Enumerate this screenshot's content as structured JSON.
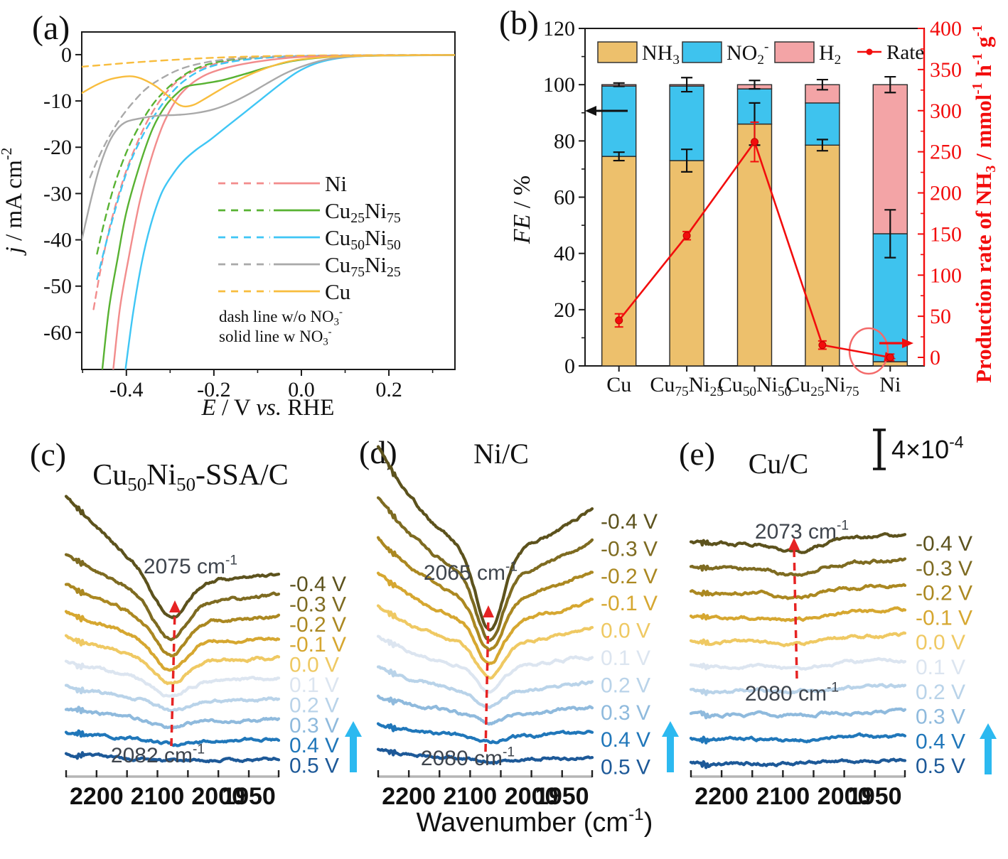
{
  "shared": {
    "wavenumber_label": "Wavenumber (cm^{-1})",
    "scalebar_label": "4×10^{-4}",
    "background": "#ffffff",
    "annotation_color": "#3f454d",
    "arrow_up_color": "#2cb9f0",
    "dashed_arrow_color": "#e62323"
  },
  "chart_data": [
    {
      "id": "a",
      "type": "line",
      "panel_label": "(a)",
      "xlabel": "@{E} / V @{vs.} RHE",
      "ylabel": "@{j} / mA cm^{-2}",
      "xlim": [
        -0.502,
        0.351
      ],
      "ylim": [
        -68,
        4.9
      ],
      "xticks": [
        -0.4,
        -0.2,
        0.0,
        0.2
      ],
      "xtick_labels": [
        "-0.4",
        "-0.2",
        "0.0",
        "0.2"
      ],
      "xminor": [
        -0.5,
        -0.3,
        -0.1,
        0.1,
        0.3
      ],
      "yticks": [
        0,
        -10,
        -20,
        -30,
        -40,
        -50,
        -60
      ],
      "legend_note_dash": "dash line w/o NO_{3}^{-}",
      "legend_note_solid": "solid line w NO_{3}^{-}",
      "legend": [
        {
          "label": "Ni",
          "color": "#f28c8c"
        },
        {
          "label": "Cu_{25}Ni_{75}",
          "color": "#58b232"
        },
        {
          "label": "Cu_{50}Ni_{50}",
          "color": "#3fc6f5"
        },
        {
          "label": "Cu_{75}Ni_{25}",
          "color": "#a9a9a9"
        },
        {
          "label": "Cu",
          "color": "#f8bd3e"
        }
      ],
      "series": [
        {
          "name": "Ni",
          "style": "dash",
          "color": "#f28c8c",
          "points": [
            [
              -0.475,
              -55
            ],
            [
              -0.46,
              -47
            ],
            [
              -0.44,
              -38
            ],
            [
              -0.42,
              -31
            ],
            [
              -0.4,
              -25
            ],
            [
              -0.375,
              -19
            ],
            [
              -0.35,
              -14
            ],
            [
              -0.32,
              -9.5
            ],
            [
              -0.29,
              -6.3
            ],
            [
              -0.26,
              -4.2
            ],
            [
              -0.22,
              -2.6
            ],
            [
              -0.17,
              -1.5
            ],
            [
              -0.1,
              -0.8
            ],
            [
              -0.02,
              -0.4
            ],
            [
              0.1,
              -0.2
            ],
            [
              0.35,
              -0.1
            ]
          ]
        },
        {
          "name": "Cu_{25}Ni_{75}",
          "style": "dash",
          "color": "#58b232",
          "points": [
            [
              -0.467,
              -43
            ],
            [
              -0.45,
              -36
            ],
            [
              -0.43,
              -29
            ],
            [
              -0.41,
              -23.5
            ],
            [
              -0.39,
              -19
            ],
            [
              -0.365,
              -14.5
            ],
            [
              -0.34,
              -10.8
            ],
            [
              -0.31,
              -7.6
            ],
            [
              -0.28,
              -5.2
            ],
            [
              -0.25,
              -3.4
            ],
            [
              -0.21,
              -2
            ],
            [
              -0.16,
              -1.1
            ],
            [
              -0.09,
              -0.5
            ],
            [
              0.0,
              -0.25
            ],
            [
              0.15,
              -0.12
            ],
            [
              0.35,
              -0.08
            ]
          ]
        },
        {
          "name": "Cu_{50}Ni_{50}",
          "style": "dash",
          "color": "#3fc6f5",
          "points": [
            [
              -0.467,
              -48.5
            ],
            [
              -0.45,
              -42
            ],
            [
              -0.43,
              -35
            ],
            [
              -0.41,
              -28.5
            ],
            [
              -0.39,
              -23
            ],
            [
              -0.36,
              -17
            ],
            [
              -0.33,
              -12.3
            ],
            [
              -0.3,
              -8.6
            ],
            [
              -0.27,
              -5.8
            ],
            [
              -0.23,
              -3.4
            ],
            [
              -0.18,
              -1.9
            ],
            [
              -0.11,
              -0.9
            ],
            [
              -0.03,
              -0.4
            ],
            [
              0.1,
              -0.18
            ],
            [
              0.35,
              -0.08
            ]
          ]
        },
        {
          "name": "Cu_{75}Ni_{25}",
          "style": "dash",
          "color": "#a9a9a9",
          "points": [
            [
              -0.483,
              -26.5
            ],
            [
              -0.46,
              -21.5
            ],
            [
              -0.435,
              -17
            ],
            [
              -0.41,
              -13.3
            ],
            [
              -0.38,
              -9.8
            ],
            [
              -0.35,
              -7
            ],
            [
              -0.31,
              -4.6
            ],
            [
              -0.27,
              -2.9
            ],
            [
              -0.22,
              -1.7
            ],
            [
              -0.16,
              -0.9
            ],
            [
              -0.08,
              -0.45
            ],
            [
              0.02,
              -0.25
            ],
            [
              0.15,
              -0.12
            ],
            [
              0.35,
              -0.08
            ]
          ]
        },
        {
          "name": "Cu",
          "style": "dash",
          "color": "#f8bd3e",
          "points": [
            [
              -0.502,
              -2.6
            ],
            [
              -0.45,
              -2.2
            ],
            [
              -0.4,
              -1.8
            ],
            [
              -0.34,
              -1.4
            ],
            [
              -0.28,
              -1.05
            ],
            [
              -0.22,
              -0.75
            ],
            [
              -0.15,
              -0.5
            ],
            [
              -0.07,
              -0.3
            ],
            [
              0.02,
              -0.18
            ],
            [
              0.15,
              -0.1
            ],
            [
              0.35,
              -0.06
            ]
          ]
        },
        {
          "name": "Ni",
          "style": "solid",
          "color": "#f28c8c",
          "points": [
            [
              -0.43,
              -68
            ],
            [
              -0.415,
              -55
            ],
            [
              -0.395,
              -44
            ],
            [
              -0.37,
              -32
            ],
            [
              -0.345,
              -23
            ],
            [
              -0.32,
              -16
            ],
            [
              -0.3,
              -12
            ],
            [
              -0.28,
              -9
            ],
            [
              -0.26,
              -7
            ],
            [
              -0.24,
              -5.5
            ],
            [
              -0.21,
              -4
            ],
            [
              -0.17,
              -2.8
            ],
            [
              -0.12,
              -1.8
            ],
            [
              -0.06,
              -1
            ],
            [
              0.0,
              -0.5
            ],
            [
              0.1,
              -0.25
            ],
            [
              0.22,
              -0.12
            ],
            [
              0.35,
              -0.08
            ]
          ]
        },
        {
          "name": "Cu_{25}Ni_{75}",
          "style": "solid",
          "color": "#58b232",
          "points": [
            [
              -0.455,
              -68
            ],
            [
              -0.44,
              -55
            ],
            [
              -0.42,
              -44
            ],
            [
              -0.4,
              -34
            ],
            [
              -0.37,
              -24
            ],
            [
              -0.34,
              -16
            ],
            [
              -0.31,
              -11
            ],
            [
              -0.28,
              -8
            ],
            [
              -0.26,
              -6.8
            ],
            [
              -0.22,
              -6.2
            ],
            [
              -0.18,
              -5.5
            ],
            [
              -0.13,
              -4.2
            ],
            [
              -0.08,
              -2.8
            ],
            [
              -0.02,
              -1.4
            ],
            [
              0.05,
              -0.6
            ],
            [
              0.15,
              -0.25
            ],
            [
              0.35,
              -0.1
            ]
          ]
        },
        {
          "name": "Cu_{50}Ni_{50}",
          "style": "solid",
          "color": "#3fc6f5",
          "points": [
            [
              -0.402,
              -68
            ],
            [
              -0.385,
              -56
            ],
            [
              -0.365,
              -45
            ],
            [
              -0.345,
              -37
            ],
            [
              -0.32,
              -30
            ],
            [
              -0.295,
              -26
            ],
            [
              -0.27,
              -23
            ],
            [
              -0.24,
              -20.5
            ],
            [
              -0.21,
              -18.5
            ],
            [
              -0.17,
              -15.5
            ],
            [
              -0.13,
              -12.5
            ],
            [
              -0.09,
              -9.5
            ],
            [
              -0.05,
              -6.5
            ],
            [
              -0.01,
              -3.8
            ],
            [
              0.03,
              -2
            ],
            [
              0.07,
              -1
            ],
            [
              0.12,
              -0.4
            ],
            [
              0.2,
              -0.2
            ],
            [
              0.35,
              -0.1
            ]
          ]
        },
        {
          "name": "Cu_{75}Ni_{25}",
          "style": "solid",
          "color": "#a9a9a9",
          "points": [
            [
              -0.502,
              -40
            ],
            [
              -0.48,
              -31
            ],
            [
              -0.46,
              -24
            ],
            [
              -0.44,
              -19
            ],
            [
              -0.42,
              -16
            ],
            [
              -0.4,
              -14.5
            ],
            [
              -0.37,
              -13.8
            ],
            [
              -0.33,
              -13.2
            ],
            [
              -0.28,
              -13
            ],
            [
              -0.24,
              -12.6
            ],
            [
              -0.2,
              -11.8
            ],
            [
              -0.16,
              -10.4
            ],
            [
              -0.12,
              -8.5
            ],
            [
              -0.08,
              -6.3
            ],
            [
              -0.04,
              -4.2
            ],
            [
              0.0,
              -2.6
            ],
            [
              0.05,
              -1.2
            ],
            [
              0.1,
              -0.5
            ],
            [
              0.18,
              -0.2
            ],
            [
              0.35,
              -0.1
            ]
          ]
        },
        {
          "name": "Cu",
          "style": "solid",
          "color": "#f8bd3e",
          "points": [
            [
              -0.502,
              -8.3
            ],
            [
              -0.47,
              -6.6
            ],
            [
              -0.44,
              -5.4
            ],
            [
              -0.41,
              -4.8
            ],
            [
              -0.385,
              -4.7
            ],
            [
              -0.36,
              -5.4
            ],
            [
              -0.33,
              -7
            ],
            [
              -0.3,
              -9.3
            ],
            [
              -0.28,
              -10.8
            ],
            [
              -0.265,
              -11.2
            ],
            [
              -0.245,
              -10.8
            ],
            [
              -0.22,
              -9.5
            ],
            [
              -0.19,
              -7.8
            ],
            [
              -0.16,
              -6.2
            ],
            [
              -0.12,
              -4.4
            ],
            [
              -0.08,
              -2.9
            ],
            [
              -0.04,
              -1.7
            ],
            [
              0.0,
              -1
            ],
            [
              0.06,
              -0.5
            ],
            [
              0.14,
              -0.25
            ],
            [
              0.25,
              -0.12
            ],
            [
              0.35,
              -0.08
            ]
          ]
        }
      ]
    },
    {
      "id": "b",
      "type": "stacked-bar-line",
      "panel_label": "(b)",
      "ylabel_left": "@{FE} / %",
      "ylabel_right": "Production rate of NH_{3} / mmol^{-1} h^{-1} g^{-1}",
      "ylim_left": [
        0,
        120
      ],
      "yticks_left": [
        0,
        20,
        40,
        60,
        80,
        100,
        120
      ],
      "yminor_left": [
        10,
        30,
        50,
        70,
        90,
        110
      ],
      "ylim_right": [
        0,
        400
      ],
      "yticks_right": [
        0,
        50,
        100,
        150,
        200,
        250,
        300,
        350,
        400
      ],
      "yminor_right": [
        25,
        75,
        125,
        175,
        225,
        275,
        325,
        375
      ],
      "categories": [
        "Cu",
        "Cu_{75}Ni_{25}",
        "Cu_{50}Ni_{50}",
        "Cu_{25}Ni_{75}",
        "Ni"
      ],
      "bar_series": [
        {
          "name": "NH_{3}",
          "color": "#edc06c",
          "values": [
            74.5,
            73,
            86,
            78.5,
            1.5
          ]
        },
        {
          "name": "NO_{2}^{-}",
          "color": "#3ec3ee",
          "values": [
            25,
            26.5,
            12.5,
            15,
            45.5
          ]
        },
        {
          "name": "H_{2}",
          "color": "#f3a4a6",
          "values": [
            0.5,
            0.5,
            1.5,
            6.5,
            53
          ]
        }
      ],
      "error_mid": [
        1.5,
        4,
        7.5,
        2,
        8.5
      ],
      "error_top": [
        0.6,
        2.5,
        1.5,
        1.8,
        2.8
      ],
      "rate": {
        "name": "Rate",
        "color": "#f20d0d",
        "values": [
          45,
          148,
          262,
          15,
          0
        ],
        "errors": [
          8,
          5,
          24,
          5,
          4
        ]
      }
    },
    {
      "id": "c",
      "type": "spectra",
      "panel_label": "(c)",
      "title": "Cu_{50}Ni_{50}-SSA/C",
      "annotation_top": "2075 cm^{-1}",
      "annotation_bottom": "2082 cm^{-1}",
      "xlim": [
        2250,
        1901
      ],
      "xticks": [
        2200,
        2100,
        2000,
        1950
      ],
      "xminors": [
        2250,
        2150,
        2050,
        1950
      ],
      "voltages": [
        "-0.4 V",
        "-0.3 V",
        "-0.2 V",
        "-0.1 V",
        "0.0 V",
        "0.1 V",
        "0.2 V",
        "0.3 V",
        "0.4 V",
        "0.5 V"
      ],
      "colors": [
        "#5c521d",
        "#7e6b21",
        "#ab8821",
        "#d6a730",
        "#efc963",
        "#dce5f0",
        "#b9d3e9",
        "#8fbadd",
        "#2077ba",
        "#1d5998"
      ]
    },
    {
      "id": "d",
      "type": "spectra",
      "panel_label": "(d)",
      "title": "Ni/C",
      "annotation_top": "2065 cm^{-1}",
      "annotation_bottom": "2080 cm^{-1}",
      "xlim": [
        2250,
        1901
      ],
      "xticks": [
        2200,
        2100,
        2000,
        1950
      ],
      "voltages": [
        "-0.4 V",
        "-0.3 V",
        "-0.2 V",
        "-0.1 V",
        "0.0 V",
        "0.1 V",
        "0.2 V",
        "0.3 V",
        "0.4 V",
        "0.5 V"
      ],
      "colors": [
        "#5c521d",
        "#7e6b21",
        "#ab8821",
        "#d6a730",
        "#efc963",
        "#dce5f0",
        "#b9d3e9",
        "#8fbadd",
        "#2077ba",
        "#1d5998"
      ]
    },
    {
      "id": "e",
      "type": "spectra",
      "panel_label": "(e)",
      "title": "Cu/C",
      "annotation_top": "2073 cm^{-1}",
      "annotation_bottom": "2080 cm^{-1}",
      "xlim": [
        2250,
        1901
      ],
      "xticks": [
        2200,
        2100,
        2000,
        1950
      ],
      "voltages": [
        "-0.4 V",
        "-0.3 V",
        "-0.2 V",
        "-0.1 V",
        "0.0 V",
        "0.1 V",
        "0.2 V",
        "0.3 V",
        "0.4 V",
        "0.5 V"
      ],
      "colors": [
        "#5c521d",
        "#7e6b21",
        "#ab8821",
        "#d6a730",
        "#efc963",
        "#dce5f0",
        "#b9d3e9",
        "#8fbadd",
        "#2077ba",
        "#1d5998"
      ]
    }
  ]
}
